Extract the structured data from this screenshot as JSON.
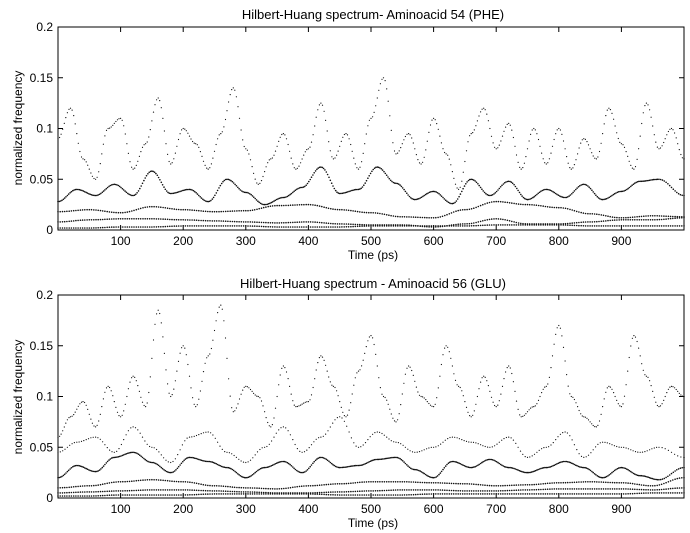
{
  "chart_data": [
    {
      "type": "scatter",
      "title": "Hilbert-Huang spectrum- Aminoacid 54 (PHE)",
      "xlabel": "Time (ps)",
      "ylabel": "normalized frequency",
      "xlim": [
        0,
        1000
      ],
      "ylim": [
        0,
        0.2
      ],
      "xticks": [
        100,
        200,
        300,
        400,
        500,
        600,
        700,
        800,
        900
      ],
      "yticks": [
        0,
        0.05,
        0.1,
        0.15,
        0.2
      ],
      "ytick_labels": [
        "0",
        "0.05",
        "0.1",
        "0.15",
        "0.2"
      ],
      "grid": false,
      "series": [
        {
          "x": [
            0,
            50,
            100,
            150,
            200,
            250,
            300,
            350,
            400,
            450,
            500,
            550,
            600,
            650,
            700,
            750,
            800,
            850,
            900,
            950,
            1000
          ],
          "y": [
            0.002,
            0.002,
            0.003,
            0.003,
            0.004,
            0.004,
            0.004,
            0.003,
            0.003,
            0.003,
            0.004,
            0.004,
            0.004,
            0.004,
            0.005,
            0.005,
            0.005,
            0.004,
            0.004,
            0.004,
            0.004
          ]
        },
        {
          "x": [
            0,
            50,
            100,
            150,
            200,
            250,
            300,
            350,
            400,
            450,
            500,
            550,
            600,
            650,
            700,
            750,
            800,
            850,
            900,
            950,
            1000
          ],
          "y": [
            0.008,
            0.01,
            0.011,
            0.011,
            0.01,
            0.009,
            0.008,
            0.007,
            0.008,
            0.006,
            0.005,
            0.005,
            0.003,
            0.006,
            0.011,
            0.006,
            0.006,
            0.008,
            0.01,
            0.01,
            0.012
          ]
        },
        {
          "x": [
            0,
            50,
            100,
            150,
            200,
            250,
            300,
            350,
            400,
            450,
            500,
            550,
            600,
            650,
            700,
            750,
            800,
            850,
            900,
            950,
            1000
          ],
          "y": [
            0.018,
            0.02,
            0.017,
            0.023,
            0.02,
            0.018,
            0.019,
            0.024,
            0.025,
            0.02,
            0.017,
            0.013,
            0.012,
            0.02,
            0.028,
            0.025,
            0.022,
            0.016,
            0.012,
            0.014,
            0.013
          ]
        },
        {
          "x": [
            0,
            30,
            60,
            90,
            120,
            150,
            180,
            210,
            240,
            270,
            300,
            330,
            360,
            390,
            420,
            450,
            480,
            510,
            540,
            570,
            600,
            630,
            660,
            690,
            720,
            750,
            780,
            810,
            840,
            870,
            900,
            930,
            960,
            1000
          ],
          "y": [
            0.028,
            0.04,
            0.034,
            0.045,
            0.034,
            0.058,
            0.036,
            0.04,
            0.028,
            0.05,
            0.037,
            0.025,
            0.032,
            0.042,
            0.062,
            0.036,
            0.04,
            0.062,
            0.046,
            0.03,
            0.038,
            0.026,
            0.05,
            0.034,
            0.048,
            0.03,
            0.04,
            0.032,
            0.045,
            0.03,
            0.038,
            0.048,
            0.05,
            0.034
          ]
        },
        {
          "x": [
            0,
            20,
            40,
            60,
            80,
            100,
            120,
            140,
            160,
            180,
            200,
            220,
            240,
            260,
            280,
            300,
            320,
            340,
            360,
            380,
            400,
            420,
            440,
            460,
            480,
            500,
            520,
            540,
            560,
            580,
            600,
            620,
            640,
            660,
            680,
            700,
            720,
            740,
            760,
            780,
            800,
            820,
            840,
            860,
            880,
            900,
            920,
            940,
            960,
            980,
            1000
          ],
          "y": [
            0.09,
            0.12,
            0.07,
            0.05,
            0.1,
            0.11,
            0.06,
            0.085,
            0.13,
            0.065,
            0.1,
            0.085,
            0.06,
            0.095,
            0.14,
            0.08,
            0.045,
            0.07,
            0.095,
            0.06,
            0.08,
            0.125,
            0.07,
            0.095,
            0.06,
            0.11,
            0.15,
            0.075,
            0.095,
            0.065,
            0.11,
            0.075,
            0.04,
            0.095,
            0.12,
            0.08,
            0.105,
            0.06,
            0.1,
            0.065,
            0.1,
            0.06,
            0.09,
            0.07,
            0.12,
            0.085,
            0.06,
            0.125,
            0.08,
            0.1,
            0.07
          ]
        }
      ]
    },
    {
      "type": "scatter",
      "title": "Hilbert-Huang spectrum - Aminoacid 56 (GLU)",
      "xlabel": "Time (ps)",
      "ylabel": "normalized frequency",
      "xlim": [
        0,
        1000
      ],
      "ylim": [
        0,
        0.2
      ],
      "xticks": [
        100,
        200,
        300,
        400,
        500,
        600,
        700,
        800,
        900
      ],
      "yticks": [
        0,
        0.05,
        0.1,
        0.15,
        0.2
      ],
      "ytick_labels": [
        "0",
        "0.05",
        "0.1",
        "0.15",
        "0.2"
      ],
      "grid": false,
      "series": [
        {
          "x": [
            0,
            50,
            100,
            150,
            200,
            250,
            300,
            350,
            400,
            450,
            500,
            550,
            600,
            650,
            700,
            750,
            800,
            850,
            900,
            950,
            1000
          ],
          "y": [
            0.002,
            0.002,
            0.003,
            0.003,
            0.003,
            0.004,
            0.004,
            0.004,
            0.004,
            0.003,
            0.003,
            0.003,
            0.004,
            0.004,
            0.004,
            0.004,
            0.004,
            0.004,
            0.004,
            0.005,
            0.005
          ]
        },
        {
          "x": [
            0,
            50,
            100,
            150,
            200,
            250,
            300,
            350,
            400,
            450,
            500,
            550,
            600,
            650,
            700,
            750,
            800,
            850,
            900,
            950,
            1000
          ],
          "y": [
            0.005,
            0.006,
            0.007,
            0.008,
            0.008,
            0.007,
            0.006,
            0.005,
            0.005,
            0.006,
            0.007,
            0.008,
            0.008,
            0.007,
            0.007,
            0.008,
            0.009,
            0.009,
            0.009,
            0.008,
            0.01
          ]
        },
        {
          "x": [
            0,
            50,
            100,
            150,
            200,
            250,
            300,
            350,
            400,
            450,
            500,
            550,
            600,
            650,
            700,
            750,
            800,
            850,
            900,
            950,
            1000
          ],
          "y": [
            0.01,
            0.012,
            0.016,
            0.018,
            0.016,
            0.012,
            0.01,
            0.009,
            0.012,
            0.014,
            0.016,
            0.016,
            0.015,
            0.014,
            0.012,
            0.013,
            0.015,
            0.016,
            0.015,
            0.012,
            0.02
          ]
        },
        {
          "x": [
            0,
            30,
            60,
            90,
            120,
            150,
            180,
            210,
            240,
            270,
            300,
            330,
            360,
            390,
            420,
            450,
            480,
            510,
            540,
            570,
            600,
            630,
            660,
            690,
            720,
            750,
            780,
            810,
            840,
            870,
            900,
            930,
            960,
            1000
          ],
          "y": [
            0.02,
            0.032,
            0.026,
            0.04,
            0.045,
            0.035,
            0.025,
            0.04,
            0.036,
            0.03,
            0.02,
            0.03,
            0.036,
            0.025,
            0.04,
            0.03,
            0.032,
            0.038,
            0.04,
            0.028,
            0.02,
            0.036,
            0.03,
            0.038,
            0.03,
            0.025,
            0.03,
            0.036,
            0.03,
            0.02,
            0.03,
            0.022,
            0.018,
            0.03
          ]
        },
        {
          "x": [
            0,
            30,
            60,
            90,
            120,
            150,
            180,
            210,
            240,
            270,
            300,
            330,
            360,
            390,
            420,
            450,
            480,
            510,
            540,
            570,
            600,
            630,
            660,
            690,
            720,
            750,
            780,
            810,
            840,
            870,
            900,
            930,
            960,
            1000
          ],
          "y": [
            0.045,
            0.055,
            0.06,
            0.045,
            0.07,
            0.05,
            0.035,
            0.06,
            0.065,
            0.045,
            0.035,
            0.05,
            0.07,
            0.045,
            0.06,
            0.08,
            0.05,
            0.065,
            0.055,
            0.045,
            0.05,
            0.06,
            0.055,
            0.05,
            0.06,
            0.04,
            0.05,
            0.065,
            0.04,
            0.055,
            0.05,
            0.045,
            0.05,
            0.04
          ]
        },
        {
          "x": [
            0,
            20,
            40,
            60,
            80,
            100,
            120,
            140,
            160,
            180,
            200,
            220,
            240,
            260,
            280,
            300,
            320,
            340,
            360,
            380,
            400,
            420,
            440,
            460,
            480,
            500,
            520,
            540,
            560,
            580,
            600,
            620,
            640,
            660,
            680,
            700,
            720,
            740,
            760,
            780,
            800,
            820,
            840,
            860,
            880,
            900,
            920,
            940,
            960,
            980,
            1000
          ],
          "y": [
            0.06,
            0.08,
            0.095,
            0.07,
            0.11,
            0.08,
            0.12,
            0.09,
            0.185,
            0.1,
            0.15,
            0.09,
            0.14,
            0.19,
            0.085,
            0.11,
            0.1,
            0.07,
            0.13,
            0.09,
            0.095,
            0.14,
            0.11,
            0.08,
            0.125,
            0.16,
            0.1,
            0.075,
            0.13,
            0.1,
            0.09,
            0.15,
            0.11,
            0.08,
            0.12,
            0.09,
            0.13,
            0.08,
            0.09,
            0.11,
            0.17,
            0.1,
            0.08,
            0.07,
            0.11,
            0.09,
            0.16,
            0.12,
            0.09,
            0.11,
            0.1
          ]
        }
      ]
    }
  ]
}
